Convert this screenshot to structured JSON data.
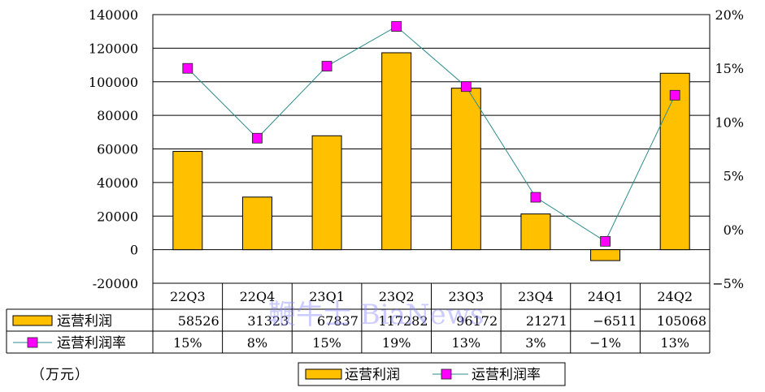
{
  "unit_label": "（万元）",
  "watermark": "鞭牛士 BiaNews",
  "chart_data": {
    "type": "bar",
    "categories": [
      "22Q3",
      "22Q4",
      "23Q1",
      "23Q2",
      "23Q3",
      "23Q4",
      "24Q1",
      "24Q2"
    ],
    "series": [
      {
        "name": "运营利润",
        "type": "bar",
        "axis": "left",
        "color": "#FFC000",
        "values": [
          58526,
          31323,
          67837,
          117282,
          96172,
          21271,
          -6511,
          105068
        ]
      },
      {
        "name": "运营利润率",
        "type": "line",
        "axis": "right",
        "color": "#FF00FF",
        "line_color": "#2E8B8B",
        "values": [
          15,
          8.5,
          15.2,
          18.9,
          13.3,
          3,
          -1.1,
          12.5
        ],
        "labels": [
          "15%",
          "8%",
          "15%",
          "19%",
          "13%",
          "3%",
          "−1%",
          "13%"
        ]
      }
    ],
    "yleft": {
      "lim": [
        -20000,
        140000
      ],
      "ticks": [
        140000,
        120000,
        100000,
        80000,
        60000,
        40000,
        20000,
        0,
        -20000
      ]
    },
    "yright": {
      "lim": [
        -5,
        20
      ],
      "ticks": [
        "20%",
        "15%",
        "10%",
        "5%",
        "0%",
        "−5%"
      ],
      "tick_values": [
        20,
        15,
        10,
        5,
        0,
        -5
      ]
    },
    "table_rows": [
      {
        "label": "运营利润",
        "values": [
          "58526",
          "31323",
          "67837",
          "117282",
          "96172",
          "21271",
          "−6511",
          "105068"
        ]
      },
      {
        "label": "运营利润率",
        "values": [
          "15%",
          "8%",
          "15%",
          "19%",
          "13%",
          "3%",
          "−1%",
          "13%"
        ]
      }
    ],
    "legend": {
      "position": "bottom",
      "items": [
        "运营利润",
        "运营利润率"
      ]
    },
    "grid": true
  }
}
